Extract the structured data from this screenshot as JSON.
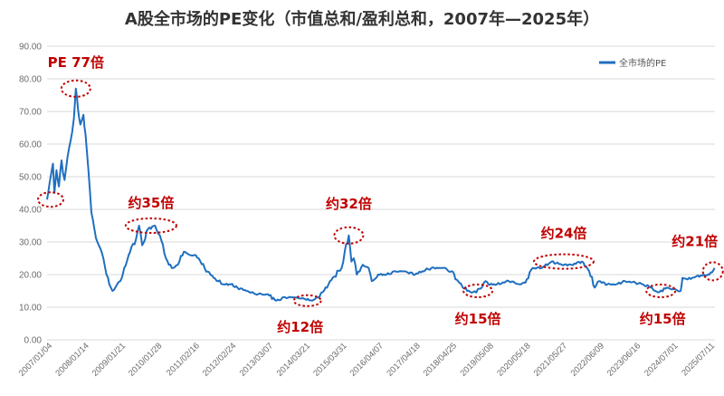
{
  "chart_data": {
    "type": "line",
    "title": "A股全市场的PE变化（市值总和/盈利总和，2007年—2025年）",
    "xlabel": "",
    "ylabel": "",
    "ylim": [
      0,
      90
    ],
    "y_ticks": [
      "0.00",
      "10.00",
      "20.00",
      "30.00",
      "40.00",
      "50.00",
      "60.00",
      "70.00",
      "80.00",
      "90.00"
    ],
    "x_ticks": [
      "2007/01/04",
      "2008/01/14",
      "2009/01/21",
      "2010/01/28",
      "2011/02/16",
      "2012/02/24",
      "2013/03/07",
      "2014/03/21",
      "2015/03/31",
      "2016/04/07",
      "2017/04/18",
      "2018/04/25",
      "2019/05/08",
      "2020/05/18",
      "2021/05/27",
      "2022/06/09",
      "2023/06/16",
      "2024/07/01",
      "2025/07/11"
    ],
    "grid": "horizontal",
    "legend_position": "top-right",
    "series": [
      {
        "name": "全市场的PE",
        "color": "#1f6fbf",
        "points": [
          [
            "2007/01/04",
            43
          ],
          [
            "2007/02/10",
            50
          ],
          [
            "2007/03/05",
            54
          ],
          [
            "2007/03/20",
            45
          ],
          [
            "2007/04/10",
            52
          ],
          [
            "2007/05/05",
            47
          ],
          [
            "2007/06/01",
            55
          ],
          [
            "2007/07/01",
            49
          ],
          [
            "2007/08/01",
            56
          ],
          [
            "2007/09/01",
            61
          ],
          [
            "2007/10/05",
            68
          ],
          [
            "2007/10/25",
            77
          ],
          [
            "2007/11/15",
            71
          ],
          [
            "2007/12/10",
            66
          ],
          [
            "2008/01/10",
            69
          ],
          [
            "2008/02/01",
            63
          ],
          [
            "2008/03/01",
            52
          ],
          [
            "2008/04/01",
            39
          ],
          [
            "2008/05/01",
            34
          ],
          [
            "2008/06/01",
            30
          ],
          [
            "2008/07/01",
            28
          ],
          [
            "2008/08/01",
            25
          ],
          [
            "2008/09/01",
            20
          ],
          [
            "2008/10/01",
            17
          ],
          [
            "2008/11/01",
            15
          ],
          [
            "2008/12/01",
            16
          ],
          [
            "2009/01/21",
            18
          ],
          [
            "2009/03/01",
            22
          ],
          [
            "2009/05/01",
            27
          ],
          [
            "2009/07/01",
            31
          ],
          [
            "2009/08/01",
            35
          ],
          [
            "2009/09/01",
            29
          ],
          [
            "2009/11/01",
            34
          ],
          [
            "2010/01/10",
            35
          ],
          [
            "2010/03/01",
            32
          ],
          [
            "2010/05/01",
            25
          ],
          [
            "2010/07/01",
            22
          ],
          [
            "2010/09/01",
            23
          ],
          [
            "2010/11/01",
            27
          ],
          [
            "2011/01/01",
            26
          ],
          [
            "2011/02/16",
            26
          ],
          [
            "2011/04/01",
            25
          ],
          [
            "2011/06/01",
            22
          ],
          [
            "2011/09/01",
            19
          ],
          [
            "2011/12/01",
            17
          ],
          [
            "2012/02/24",
            17
          ],
          [
            "2012/05/01",
            16
          ],
          [
            "2012/08/01",
            15
          ],
          [
            "2012/11/01",
            14
          ],
          [
            "2013/01/01",
            14
          ],
          [
            "2013/03/07",
            14
          ],
          [
            "2013/06/01",
            12
          ],
          [
            "2013/09/01",
            13
          ],
          [
            "2013/12/01",
            13
          ],
          [
            "2014/03/21",
            12.5
          ],
          [
            "2014/06/01",
            12
          ],
          [
            "2014/08/01",
            13
          ],
          [
            "2014/10/01",
            15
          ],
          [
            "2014/12/01",
            18
          ],
          [
            "2015/03/31",
            22
          ],
          [
            "2015/05/01",
            27
          ],
          [
            "2015/06/12",
            32
          ],
          [
            "2015/07/08",
            24
          ],
          [
            "2015/08/01",
            25
          ],
          [
            "2015/09/01",
            20
          ],
          [
            "2015/11/01",
            23
          ],
          [
            "2016/01/01",
            22
          ],
          [
            "2016/02/01",
            18
          ],
          [
            "2016/04/07",
            20
          ],
          [
            "2016/07/01",
            20
          ],
          [
            "2016/10/01",
            21
          ],
          [
            "2017/01/01",
            21
          ],
          [
            "2017/04/18",
            20
          ],
          [
            "2017/07/01",
            21
          ],
          [
            "2017/10/01",
            22
          ],
          [
            "2018/01/20",
            22
          ],
          [
            "2018/04/25",
            21
          ],
          [
            "2018/07/01",
            18
          ],
          [
            "2018/10/01",
            15
          ],
          [
            "2019/01/03",
            14.5
          ],
          [
            "2019/04/08",
            18
          ],
          [
            "2019/05/08",
            17
          ],
          [
            "2019/08/01",
            17
          ],
          [
            "2019/12/01",
            18
          ],
          [
            "2020/03/20",
            17
          ],
          [
            "2020/05/18",
            17.5
          ],
          [
            "2020/08/01",
            22
          ],
          [
            "2020/11/01",
            22
          ],
          [
            "2021/02/10",
            24
          ],
          [
            "2021/05/27",
            23
          ],
          [
            "2021/09/01",
            23
          ],
          [
            "2021/12/15",
            24
          ],
          [
            "2022/03/01",
            21
          ],
          [
            "2022/04/26",
            16
          ],
          [
            "2022/06/09",
            18
          ],
          [
            "2022/09/01",
            17
          ],
          [
            "2022/12/01",
            17
          ],
          [
            "2023/03/01",
            18
          ],
          [
            "2023/06/16",
            17.5
          ],
          [
            "2023/09/01",
            17
          ],
          [
            "2023/12/01",
            16
          ],
          [
            "2024/02/05",
            14.5
          ],
          [
            "2024/05/01",
            16
          ],
          [
            "2024/07/01",
            15.5
          ],
          [
            "2024/09/20",
            15
          ],
          [
            "2024/10/08",
            19
          ],
          [
            "2024/12/01",
            18.5
          ],
          [
            "2025/03/01",
            19.5
          ],
          [
            "2025/07/11",
            20
          ],
          [
            "2025/09/01",
            22
          ]
        ]
      }
    ],
    "annotations": [
      {
        "text": "PE 77倍",
        "x": "2007/10/25",
        "y": 77
      },
      {
        "text": "约35倍",
        "x": "2009/12/01",
        "y": 35
      },
      {
        "text": "约12倍",
        "x": "2014/04/15",
        "y": 12
      },
      {
        "text": "约32倍",
        "x": "2015/06/12",
        "y": 32
      },
      {
        "text": "约15倍",
        "x": "2019/01/20",
        "y": 15
      },
      {
        "text": "约24倍",
        "x": "2021/06/15",
        "y": 24
      },
      {
        "text": "约15倍",
        "x": "2024/03/01",
        "y": 15
      },
      {
        "text": "约21倍",
        "x": "2025/08/15",
        "y": 21
      }
    ]
  }
}
